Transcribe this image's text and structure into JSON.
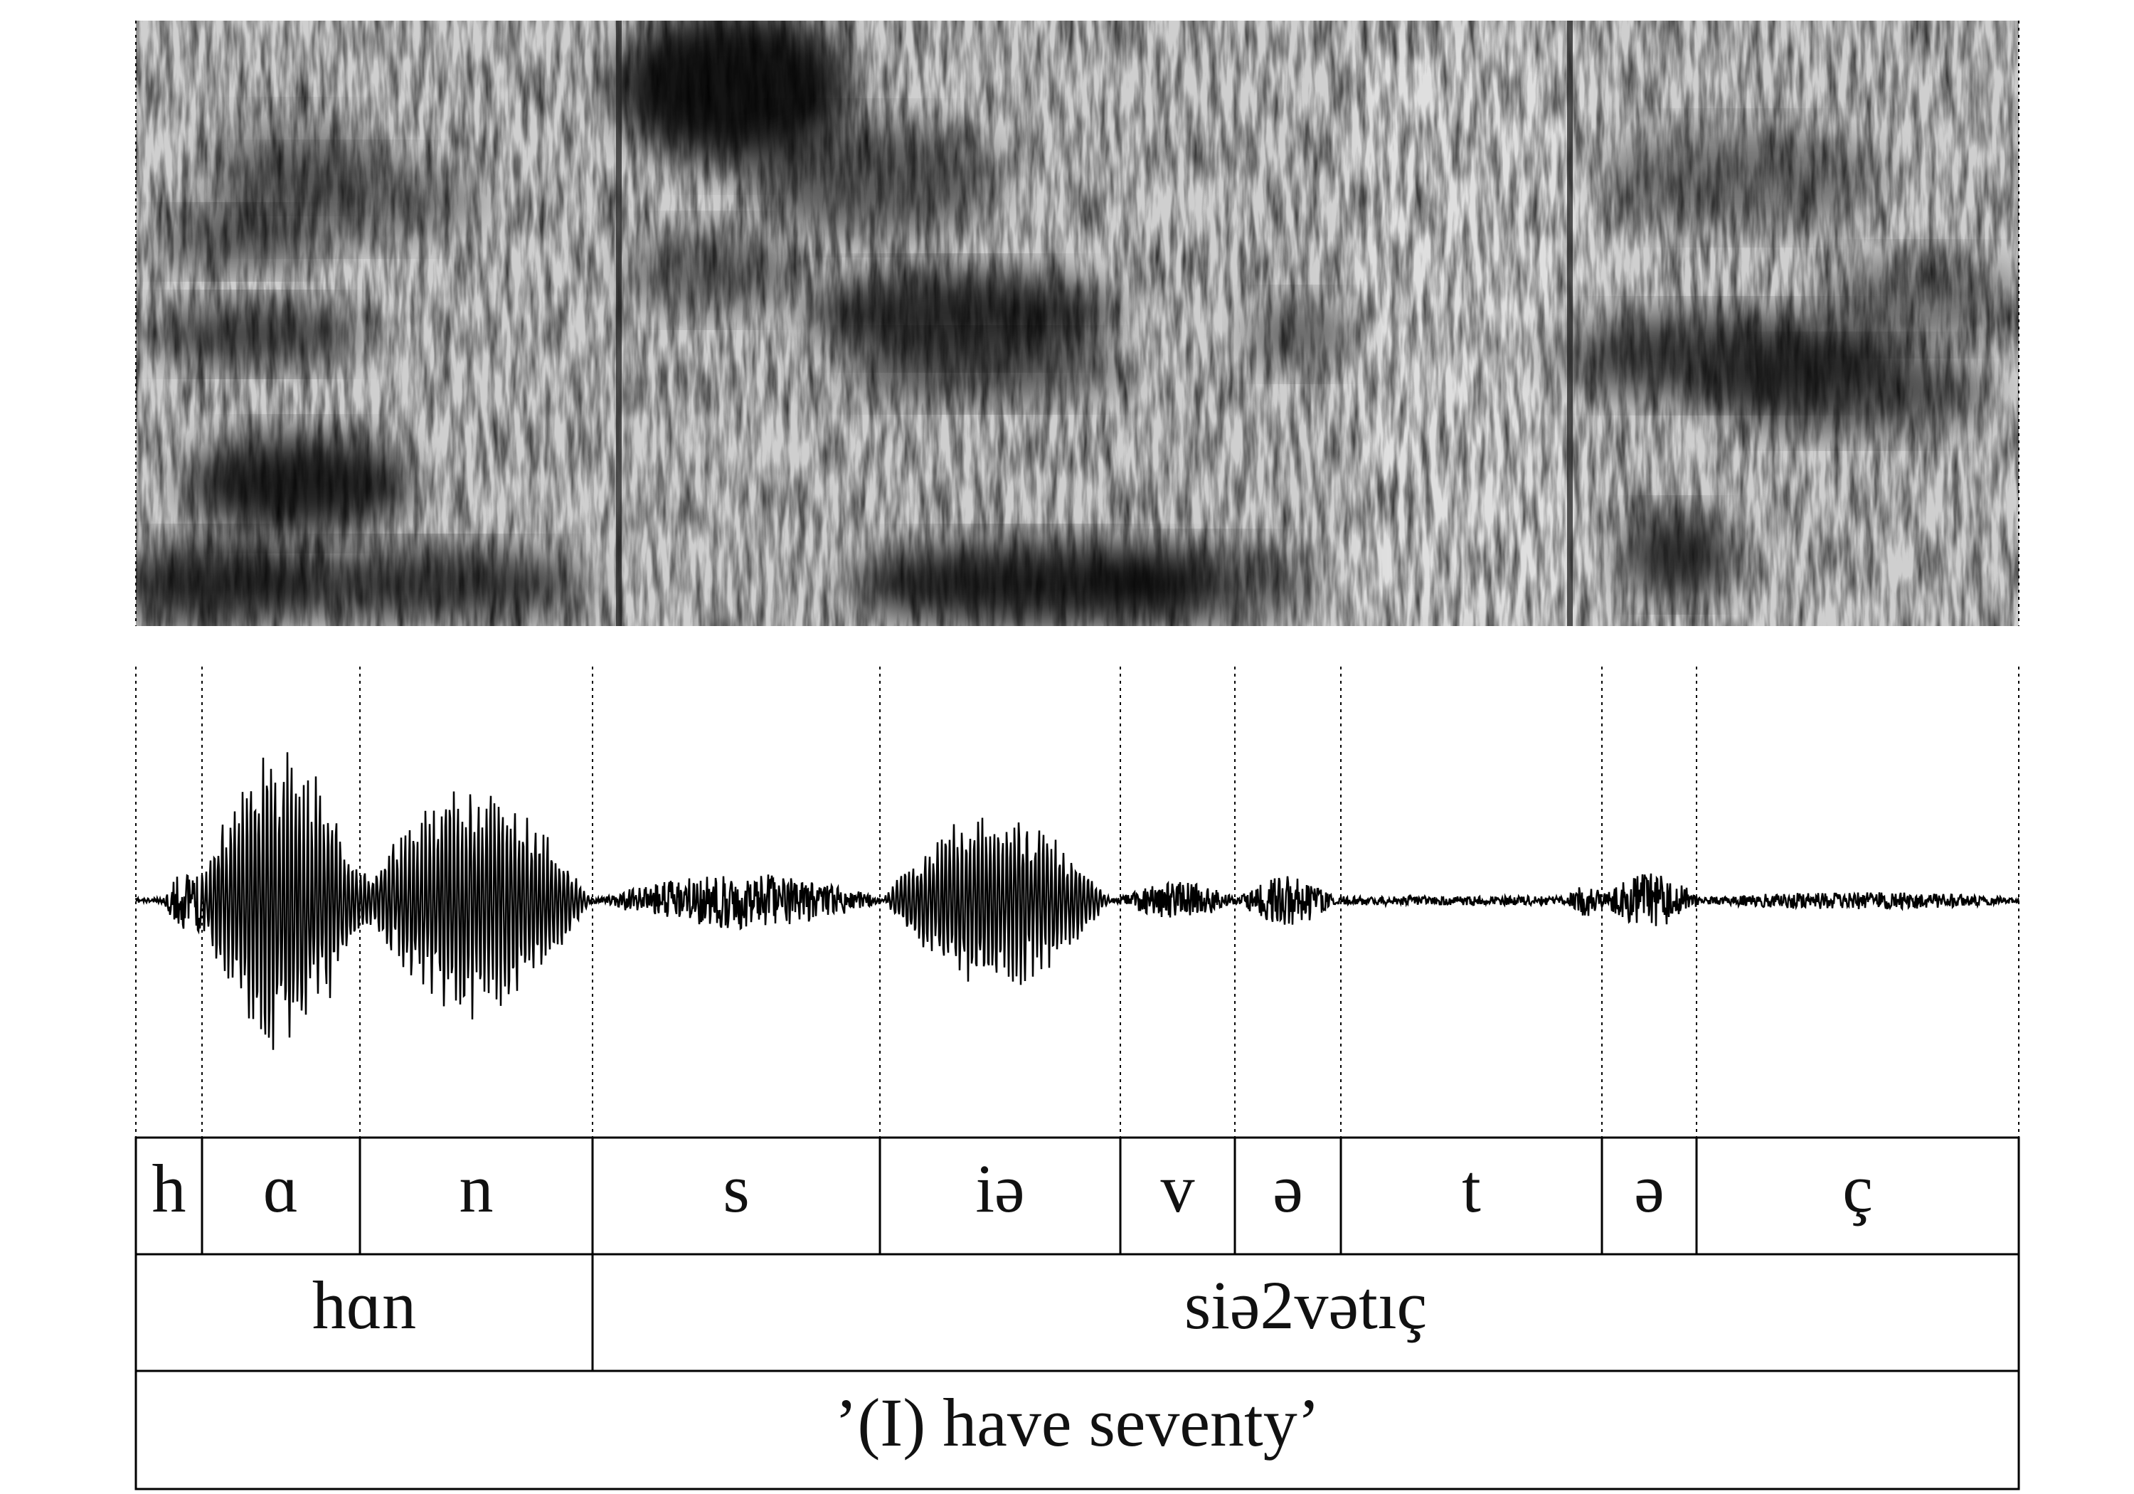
{
  "tiers": {
    "phones": [
      "h",
      "ɑ",
      "n",
      "s",
      "iə",
      "v",
      "ə",
      "t",
      "ə",
      "ç"
    ],
    "words": [
      "hɑn",
      "siə2vətıç"
    ],
    "gloss": "’(I) have seventy’"
  }
}
